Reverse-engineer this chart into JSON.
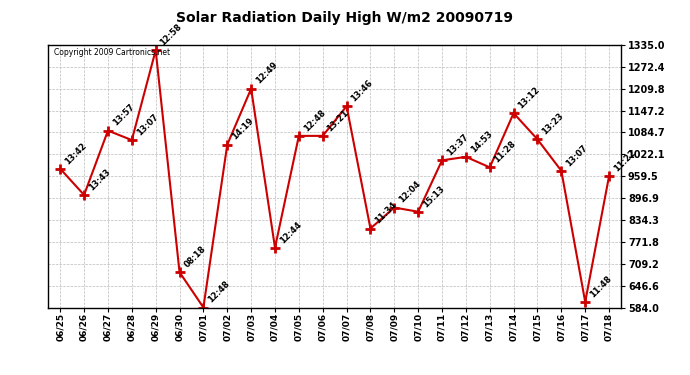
{
  "title": "Solar Radiation Daily High W/m2 20090719",
  "copyright": "Copyright 2009 Cartronics.net",
  "dates": [
    "06/25",
    "06/26",
    "06/27",
    "06/28",
    "06/29",
    "06/30",
    "07/01",
    "07/02",
    "07/03",
    "07/04",
    "07/05",
    "07/06",
    "07/07",
    "07/08",
    "07/09",
    "07/10",
    "07/11",
    "07/12",
    "07/13",
    "07/14",
    "07/15",
    "07/16",
    "07/17",
    "07/18"
  ],
  "values": [
    981,
    906,
    1090,
    1063,
    1320,
    685,
    584,
    1050,
    1210,
    755,
    1075,
    1075,
    1160,
    810,
    870,
    858,
    1005,
    1015,
    985,
    1140,
    1065,
    975,
    600,
    960
  ],
  "annotations": [
    "13:42",
    "13:43",
    "13:57",
    "13:07",
    "12:58",
    "08:18",
    "12:48",
    "14:19",
    "12:49",
    "12:44",
    "12:48",
    "13:21",
    "13:46",
    "11:34",
    "12:04",
    "15:13",
    "13:37",
    "14:53",
    "11:28",
    "13:12",
    "13:23",
    "13:07",
    "11:48",
    "11:22"
  ],
  "line_color": "#cc0000",
  "marker_color": "#cc0000",
  "background_color": "#ffffff",
  "grid_color": "#bbbbbb",
  "ylim": [
    584.0,
    1335.0
  ],
  "yticks": [
    584.0,
    646.6,
    709.2,
    771.8,
    834.3,
    896.9,
    959.5,
    1022.1,
    1084.7,
    1147.2,
    1209.8,
    1272.4,
    1335.0
  ],
  "figsize": [
    6.9,
    3.75
  ],
  "dpi": 100
}
